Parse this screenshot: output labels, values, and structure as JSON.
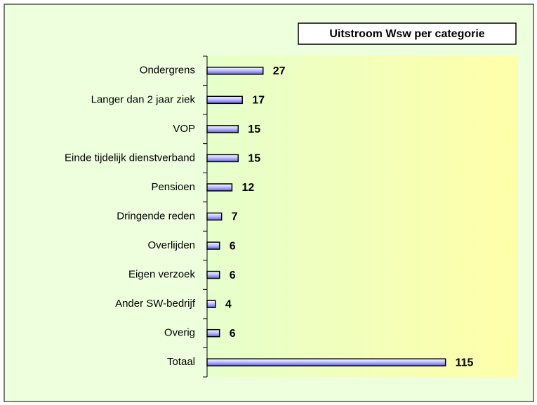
{
  "chart_data": {
    "type": "barh",
    "title": "Uitstroom Wsw per categorie",
    "categories": [
      "Ondergrens",
      "Langer dan 2 jaar ziek",
      "VOP",
      "Einde tijdelijk dienstverband",
      "Pensioen",
      "Dringende reden",
      "Overlijden",
      "Eigen verzoek",
      "Ander SW-bedrijf",
      "Overig",
      "Totaal"
    ],
    "values": [
      27,
      17,
      15,
      15,
      12,
      7,
      6,
      6,
      4,
      6,
      115
    ],
    "xlim": [
      0,
      150
    ],
    "color": "#8080ff"
  }
}
